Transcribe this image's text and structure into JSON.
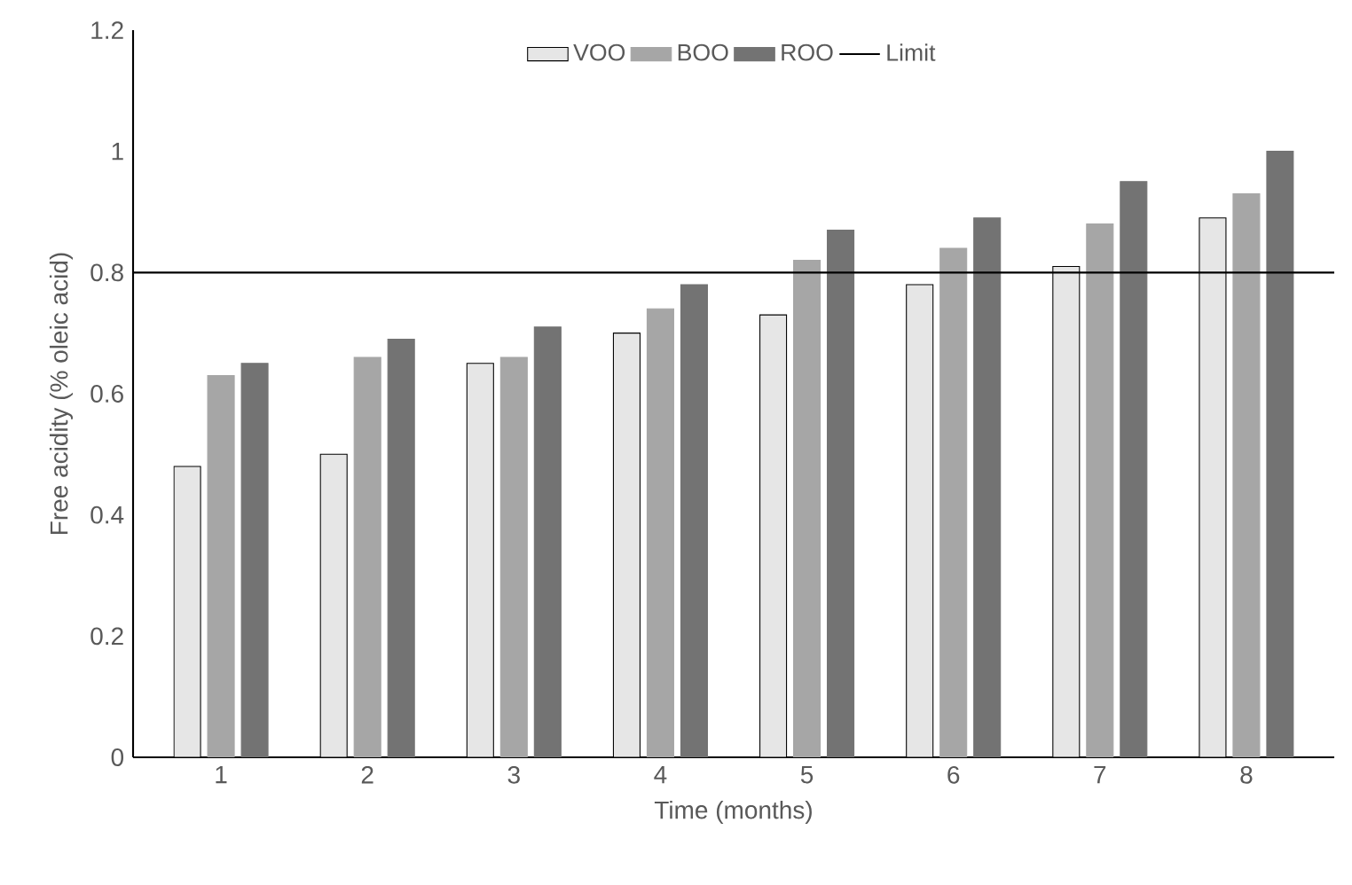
{
  "chart_data": {
    "type": "bar",
    "xlabel": "Time (months)",
    "ylabel": "Free acidity (% oleic acid)",
    "categories": [
      "1",
      "2",
      "3",
      "4",
      "5",
      "6",
      "7",
      "8"
    ],
    "series": [
      {
        "name": "VOO",
        "color": "#e6e6e6",
        "values": [
          0.48,
          0.5,
          0.65,
          0.7,
          0.73,
          0.78,
          0.81,
          0.89
        ]
      },
      {
        "name": "BOO",
        "color": "#a6a6a6",
        "values": [
          0.63,
          0.66,
          0.66,
          0.74,
          0.82,
          0.84,
          0.88,
          0.93
        ]
      },
      {
        "name": "ROO",
        "color": "#737373",
        "values": [
          0.65,
          0.69,
          0.71,
          0.78,
          0.87,
          0.89,
          0.95,
          1.0
        ]
      }
    ],
    "ylim": [
      0,
      1.2
    ],
    "yticks": [
      0,
      0.2,
      0.4,
      0.6,
      0.8,
      1,
      1.2
    ],
    "ref_lines": [
      {
        "axis": "y",
        "value": 0.8,
        "label": "Limit",
        "color": "#000000"
      }
    ],
    "grid": false,
    "legend": "top"
  }
}
